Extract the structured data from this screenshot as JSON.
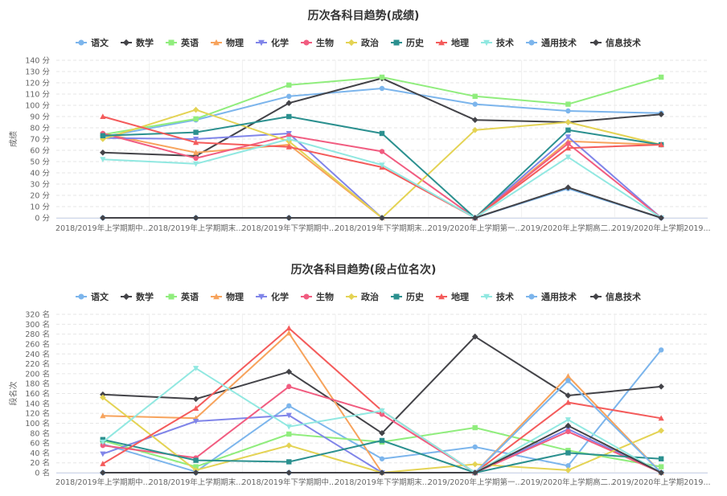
{
  "colors": {
    "grid": "#e6e6e6",
    "axis": "#ccd6eb",
    "text": "#666666",
    "title": "#333333"
  },
  "chart_data": [
    {
      "type": "line",
      "title": "历次各科目趋势(成绩)",
      "ylabel": "成绩",
      "xlabel": "",
      "ylim": [
        0,
        140
      ],
      "y_ticks": [
        "0 分",
        "10 分",
        "20 分",
        "30 分",
        "40 分",
        "50 分",
        "60 分",
        "70 分",
        "80 分",
        "90 分",
        "100 分",
        "110 分",
        "120 分",
        "130 分",
        "140 分"
      ],
      "categories": [
        "2018/2019年上学期期中...",
        "2018/2019年上学期期末...",
        "2018/2019年下学期期中...",
        "2018/2019年下学期期末...",
        "2019/2020年上学期第一...",
        "2019/2020年上学期高二...",
        "2019/2020年上学期2019..."
      ],
      "grid": true,
      "legend_position": "top",
      "series": [
        {
          "name": "语文",
          "color": "#7cb5ec",
          "marker": "circle",
          "values": [
            72,
            87,
            108,
            115,
            101,
            95,
            93
          ]
        },
        {
          "name": "数学",
          "color": "#434348",
          "marker": "diamond",
          "values": [
            58,
            55,
            102,
            124,
            87,
            85,
            92
          ]
        },
        {
          "name": "英语",
          "color": "#90ed7d",
          "marker": "square",
          "values": [
            74,
            88,
            118,
            125,
            108,
            101,
            125
          ]
        },
        {
          "name": "物理",
          "color": "#f7a35c",
          "marker": "triangle",
          "values": [
            75,
            58,
            65,
            0,
            0,
            68,
            65
          ]
        },
        {
          "name": "化学",
          "color": "#8085e9",
          "marker": "triangle-down",
          "values": [
            71,
            70,
            75,
            0,
            0,
            72,
            0
          ]
        },
        {
          "name": "生物",
          "color": "#f15c80",
          "marker": "circle",
          "values": [
            75,
            53,
            73,
            59,
            0,
            66,
            0
          ]
        },
        {
          "name": "政治",
          "color": "#e4d354",
          "marker": "diamond",
          "values": [
            70,
            96,
            68,
            0,
            78,
            85,
            65
          ]
        },
        {
          "name": "历史",
          "color": "#2b908f",
          "marker": "square",
          "values": [
            73,
            76,
            90,
            75,
            0,
            78,
            65
          ]
        },
        {
          "name": "地理",
          "color": "#f45b5b",
          "marker": "triangle",
          "values": [
            90,
            67,
            63,
            45,
            0,
            62,
            65
          ]
        },
        {
          "name": "技术",
          "color": "#91e8e1",
          "marker": "triangle-down",
          "values": [
            52,
            48,
            70,
            47,
            0,
            54,
            0
          ]
        },
        {
          "name": "通用技术",
          "color": "#7cb5ec",
          "marker": "circle",
          "values": [
            0,
            0,
            0,
            0,
            0,
            26,
            0
          ]
        },
        {
          "name": "信息技术",
          "color": "#434348",
          "marker": "diamond",
          "values": [
            0,
            0,
            0,
            0,
            0,
            27,
            0
          ]
        }
      ]
    },
    {
      "type": "line",
      "title": "历次各科目趋势(段占位名次)",
      "ylabel": "段名次",
      "xlabel": "",
      "ylim": [
        0,
        320
      ],
      "y_ticks": [
        "0 名",
        "20 名",
        "40 名",
        "60 名",
        "80 名",
        "100 名",
        "120 名",
        "140 名",
        "160 名",
        "180 名",
        "200 名",
        "220 名",
        "240 名",
        "260 名",
        "280 名",
        "300 名",
        "320 名"
      ],
      "categories": [
        "2018/2019年上学期期中...",
        "2018/2019年上学期期末...",
        "2018/2019年下学期期中...",
        "2018/2019年下学期期末...",
        "2019/2020年上学期第一...",
        "2019/2020年上学期高二...",
        "2019/2020年上学期2019..."
      ],
      "grid": true,
      "legend_position": "top",
      "series": [
        {
          "name": "语文",
          "color": "#7cb5ec",
          "marker": "circle",
          "values": [
            58,
            2,
            135,
            28,
            52,
            14,
            248
          ]
        },
        {
          "name": "数学",
          "color": "#434348",
          "marker": "diamond",
          "values": [
            158,
            149,
            204,
            80,
            275,
            156,
            174
          ]
        },
        {
          "name": "英语",
          "color": "#90ed7d",
          "marker": "square",
          "values": [
            65,
            12,
            78,
            62,
            91,
            45,
            12
          ]
        },
        {
          "name": "物理",
          "color": "#f7a35c",
          "marker": "triangle",
          "values": [
            115,
            110,
            282,
            0,
            0,
            195,
            0
          ]
        },
        {
          "name": "化学",
          "color": "#8085e9",
          "marker": "triangle-down",
          "values": [
            38,
            104,
            116,
            0,
            0,
            88,
            0
          ]
        },
        {
          "name": "生物",
          "color": "#f15c80",
          "marker": "circle",
          "values": [
            55,
            30,
            174,
            118,
            0,
            83,
            0
          ]
        },
        {
          "name": "政治",
          "color": "#e4d354",
          "marker": "diamond",
          "values": [
            152,
            5,
            55,
            0,
            17,
            5,
            85
          ]
        },
        {
          "name": "历史",
          "color": "#2b908f",
          "marker": "square",
          "values": [
            67,
            25,
            22,
            65,
            0,
            40,
            28
          ]
        },
        {
          "name": "地理",
          "color": "#f45b5b",
          "marker": "triangle",
          "values": [
            18,
            130,
            292,
            125,
            0,
            142,
            110
          ]
        },
        {
          "name": "技术",
          "color": "#91e8e1",
          "marker": "triangle-down",
          "values": [
            62,
            211,
            93,
            125,
            0,
            107,
            0
          ]
        },
        {
          "name": "通用技术",
          "color": "#7cb5ec",
          "marker": "circle",
          "values": [
            0,
            0,
            0,
            0,
            0,
            186,
            0
          ]
        },
        {
          "name": "信息技术",
          "color": "#434348",
          "marker": "diamond",
          "values": [
            0,
            0,
            0,
            0,
            0,
            95,
            0
          ]
        }
      ]
    }
  ]
}
